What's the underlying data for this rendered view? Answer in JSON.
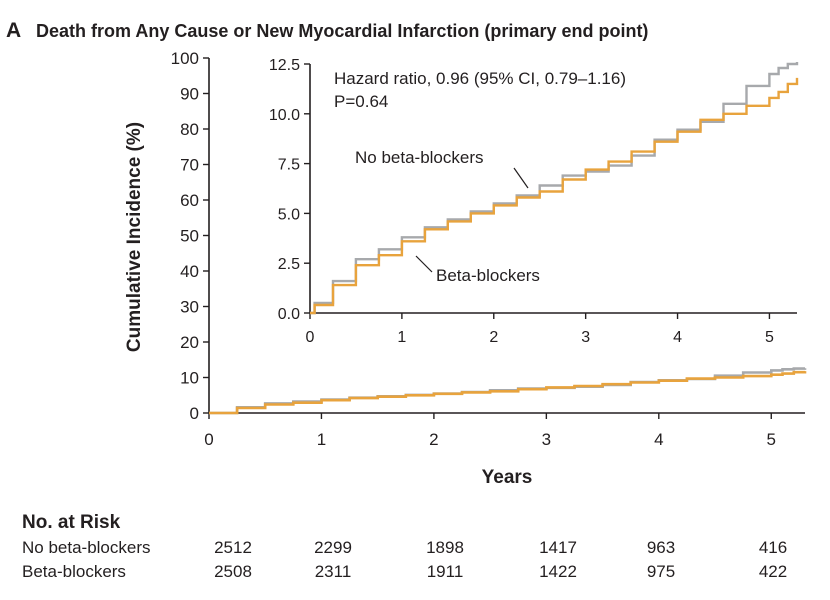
{
  "panel_label": "A",
  "title": "Death from Any Cause or New Myocardial Infarction (primary end point)",
  "colors": {
    "no_beta_blockers": "#a7a9ac",
    "beta_blockers": "#e8a33d",
    "axis": "#231f20"
  },
  "chart_data": [
    {
      "type": "line",
      "xlabel": "Years",
      "ylabel": "Cumulative Incidence (%)",
      "xlim": [
        0,
        5.3
      ],
      "ylim": [
        0,
        100
      ],
      "xticks": [
        "0",
        "1",
        "2",
        "3",
        "4",
        "5"
      ],
      "yticks": [
        "0",
        "10",
        "20",
        "30",
        "40",
        "50",
        "60",
        "70",
        "80",
        "90",
        "100"
      ],
      "series": [
        {
          "name": "No beta-blockers",
          "x": [
            0,
            0.25,
            0.5,
            0.75,
            1,
            1.25,
            1.5,
            1.75,
            2,
            2.25,
            2.5,
            2.75,
            3,
            3.25,
            3.5,
            3.75,
            4,
            4.25,
            4.5,
            4.75,
            5,
            5.1,
            5.2,
            5.3
          ],
          "y": [
            0,
            1.6,
            2.7,
            3.2,
            3.8,
            4.3,
            4.7,
            5.1,
            5.5,
            5.9,
            6.4,
            6.9,
            7.1,
            7.4,
            7.9,
            8.7,
            9.2,
            9.6,
            10.5,
            11.4,
            12.0,
            12.3,
            12.5,
            12.6
          ]
        },
        {
          "name": "Beta-blockers",
          "x": [
            0,
            0.25,
            0.5,
            0.75,
            1,
            1.25,
            1.5,
            1.75,
            2,
            2.25,
            2.5,
            2.75,
            3,
            3.25,
            3.5,
            3.75,
            4,
            4.25,
            4.5,
            4.75,
            5,
            5.1,
            5.2,
            5.3
          ],
          "y": [
            0,
            1.4,
            2.4,
            2.9,
            3.6,
            4.2,
            4.6,
            5.0,
            5.4,
            5.8,
            6.1,
            6.7,
            7.2,
            7.6,
            8.1,
            8.6,
            9.1,
            9.7,
            10.0,
            10.4,
            10.8,
            11.1,
            11.5,
            11.8
          ]
        }
      ]
    },
    {
      "type": "line",
      "inset": true,
      "xlim": [
        0,
        5.3
      ],
      "ylim": [
        0,
        12.5
      ],
      "xticks": [
        "0",
        "1",
        "2",
        "3",
        "4",
        "5"
      ],
      "yticks": [
        "0.0",
        "2.5",
        "5.0",
        "7.5",
        "10.0",
        "12.5"
      ],
      "annotation_line1": "Hazard ratio, 0.96 (95% CI, 0.79–1.16)",
      "annotation_line2": "P=0.64",
      "series": [
        {
          "name": "No beta-blockers",
          "x": [
            0,
            0.05,
            0.25,
            0.5,
            0.75,
            1,
            1.25,
            1.5,
            1.75,
            2,
            2.25,
            2.5,
            2.75,
            3,
            3.25,
            3.5,
            3.75,
            4,
            4.25,
            4.5,
            4.75,
            5,
            5.1,
            5.2,
            5.3
          ],
          "y": [
            0,
            0.5,
            1.6,
            2.7,
            3.2,
            3.8,
            4.3,
            4.7,
            5.1,
            5.5,
            5.9,
            6.4,
            6.9,
            7.1,
            7.4,
            7.9,
            8.7,
            9.2,
            9.6,
            10.5,
            11.4,
            12.0,
            12.3,
            12.5,
            12.6
          ]
        },
        {
          "name": "Beta-blockers",
          "x": [
            0,
            0.05,
            0.25,
            0.5,
            0.75,
            1,
            1.25,
            1.5,
            1.75,
            2,
            2.25,
            2.5,
            2.75,
            3,
            3.25,
            3.5,
            3.75,
            4,
            4.25,
            4.5,
            4.75,
            5,
            5.1,
            5.2,
            5.3
          ],
          "y": [
            0,
            0.4,
            1.4,
            2.4,
            2.9,
            3.6,
            4.2,
            4.6,
            5.0,
            5.4,
            5.8,
            6.1,
            6.7,
            7.2,
            7.6,
            8.1,
            8.6,
            9.1,
            9.7,
            10.0,
            10.4,
            10.8,
            11.1,
            11.5,
            11.8
          ]
        }
      ]
    }
  ],
  "risk_table": {
    "header": "No. at Risk",
    "rows": [
      {
        "label": "No beta-blockers",
        "values": [
          "2512",
          "2299",
          "1898",
          "1417",
          "963",
          "416"
        ]
      },
      {
        "label": "Beta-blockers",
        "values": [
          "2508",
          "2311",
          "1911",
          "1422",
          "975",
          "422"
        ]
      }
    ]
  }
}
